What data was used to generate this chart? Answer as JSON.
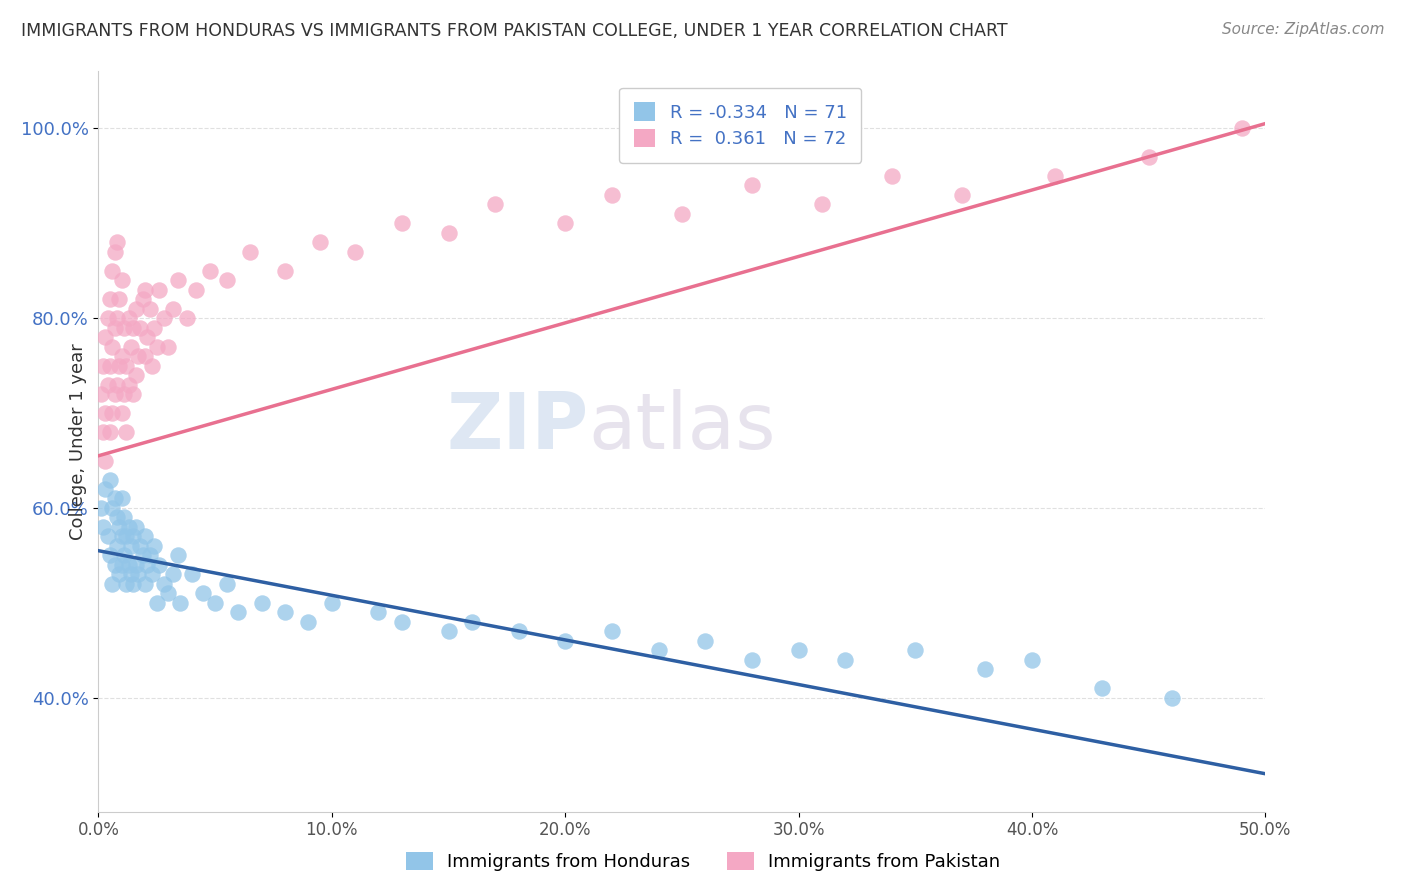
{
  "title": "IMMIGRANTS FROM HONDURAS VS IMMIGRANTS FROM PAKISTAN COLLEGE, UNDER 1 YEAR CORRELATION CHART",
  "source": "Source: ZipAtlas.com",
  "ylabel": "College, Under 1 year",
  "xlim": [
    0.0,
    0.5
  ],
  "ylim": [
    0.28,
    1.06
  ],
  "xticks": [
    0.0,
    0.1,
    0.2,
    0.3,
    0.4,
    0.5
  ],
  "xticklabels": [
    "0.0%",
    "10.0%",
    "20.0%",
    "30.0%",
    "40.0%",
    "50.0%"
  ],
  "yticks": [
    0.4,
    0.6,
    0.8,
    1.0
  ],
  "yticklabels": [
    "40.0%",
    "60.0%",
    "80.0%",
    "100.0%"
  ],
  "R_honduras": -0.334,
  "N_honduras": 71,
  "R_pakistan": 0.361,
  "N_pakistan": 72,
  "color_honduras": "#92C5E8",
  "color_pakistan": "#F4A8C4",
  "color_honduras_line": "#2E5FA3",
  "color_pakistan_line": "#E87090",
  "grid_color": "#E0E0E0",
  "honduras_x": [
    0.001,
    0.002,
    0.003,
    0.004,
    0.005,
    0.005,
    0.006,
    0.006,
    0.007,
    0.007,
    0.008,
    0.008,
    0.009,
    0.009,
    0.01,
    0.01,
    0.01,
    0.011,
    0.011,
    0.012,
    0.012,
    0.013,
    0.013,
    0.014,
    0.014,
    0.015,
    0.015,
    0.016,
    0.016,
    0.017,
    0.018,
    0.019,
    0.02,
    0.02,
    0.021,
    0.022,
    0.023,
    0.024,
    0.025,
    0.026,
    0.028,
    0.03,
    0.032,
    0.034,
    0.035,
    0.04,
    0.045,
    0.05,
    0.055,
    0.06,
    0.07,
    0.08,
    0.09,
    0.1,
    0.12,
    0.13,
    0.15,
    0.16,
    0.18,
    0.2,
    0.22,
    0.24,
    0.26,
    0.28,
    0.3,
    0.32,
    0.35,
    0.38,
    0.4,
    0.43,
    0.46
  ],
  "honduras_y": [
    0.6,
    0.58,
    0.62,
    0.57,
    0.55,
    0.63,
    0.52,
    0.6,
    0.54,
    0.61,
    0.56,
    0.59,
    0.53,
    0.58,
    0.54,
    0.57,
    0.61,
    0.55,
    0.59,
    0.52,
    0.57,
    0.54,
    0.58,
    0.53,
    0.56,
    0.52,
    0.57,
    0.54,
    0.58,
    0.53,
    0.56,
    0.55,
    0.52,
    0.57,
    0.54,
    0.55,
    0.53,
    0.56,
    0.5,
    0.54,
    0.52,
    0.51,
    0.53,
    0.55,
    0.5,
    0.53,
    0.51,
    0.5,
    0.52,
    0.49,
    0.5,
    0.49,
    0.48,
    0.5,
    0.49,
    0.48,
    0.47,
    0.48,
    0.47,
    0.46,
    0.47,
    0.45,
    0.46,
    0.44,
    0.45,
    0.44,
    0.45,
    0.43,
    0.44,
    0.41,
    0.4
  ],
  "pakistan_x": [
    0.001,
    0.002,
    0.002,
    0.003,
    0.003,
    0.003,
    0.004,
    0.004,
    0.005,
    0.005,
    0.005,
    0.006,
    0.006,
    0.006,
    0.007,
    0.007,
    0.007,
    0.008,
    0.008,
    0.008,
    0.009,
    0.009,
    0.01,
    0.01,
    0.01,
    0.011,
    0.011,
    0.012,
    0.012,
    0.013,
    0.013,
    0.014,
    0.015,
    0.015,
    0.016,
    0.016,
    0.017,
    0.018,
    0.019,
    0.02,
    0.02,
    0.021,
    0.022,
    0.023,
    0.024,
    0.025,
    0.026,
    0.028,
    0.03,
    0.032,
    0.034,
    0.038,
    0.042,
    0.048,
    0.055,
    0.065,
    0.08,
    0.095,
    0.11,
    0.13,
    0.15,
    0.17,
    0.2,
    0.22,
    0.25,
    0.28,
    0.31,
    0.34,
    0.37,
    0.41,
    0.45,
    0.49
  ],
  "pakistan_y": [
    0.72,
    0.68,
    0.75,
    0.7,
    0.78,
    0.65,
    0.73,
    0.8,
    0.68,
    0.75,
    0.82,
    0.7,
    0.77,
    0.85,
    0.72,
    0.79,
    0.87,
    0.73,
    0.8,
    0.88,
    0.75,
    0.82,
    0.7,
    0.76,
    0.84,
    0.72,
    0.79,
    0.68,
    0.75,
    0.73,
    0.8,
    0.77,
    0.72,
    0.79,
    0.74,
    0.81,
    0.76,
    0.79,
    0.82,
    0.76,
    0.83,
    0.78,
    0.81,
    0.75,
    0.79,
    0.77,
    0.83,
    0.8,
    0.77,
    0.81,
    0.84,
    0.8,
    0.83,
    0.85,
    0.84,
    0.87,
    0.85,
    0.88,
    0.87,
    0.9,
    0.89,
    0.92,
    0.9,
    0.93,
    0.91,
    0.94,
    0.92,
    0.95,
    0.93,
    0.95,
    0.97,
    1.0
  ],
  "honduras_line_x0": 0.0,
  "honduras_line_x1": 0.5,
  "honduras_line_y0": 0.555,
  "honduras_line_y1": 0.32,
  "pakistan_line_x0": 0.0,
  "pakistan_line_x1": 0.5,
  "pakistan_line_y0": 0.655,
  "pakistan_line_y1": 1.005
}
